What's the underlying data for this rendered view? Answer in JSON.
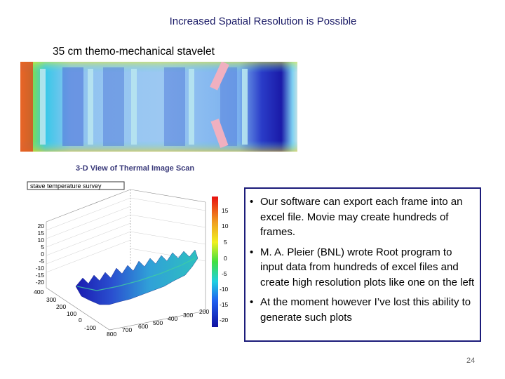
{
  "slide": {
    "title": "Increased Spatial Resolution is Possible",
    "subtitle": "35 cm themo-mechanical stavelet",
    "page_number": "24"
  },
  "figure": {
    "scan_caption": "3-D View of Thermal Image Scan",
    "plot_title": "stave temperature survey",
    "z_axis_ticks": [
      "20",
      "15",
      "10",
      "5",
      "0",
      "-5",
      "-10",
      "-15",
      "-20"
    ],
    "y_axis_ticks": [
      "400",
      "300",
      "200",
      "100",
      "0",
      "-100"
    ],
    "x_axis_ticks": [
      "800",
      "700",
      "600",
      "500",
      "400",
      "300",
      "200"
    ],
    "colorbar_ticks": [
      "15",
      "10",
      "5",
      "0",
      "-5",
      "-10",
      "-15",
      "-20"
    ]
  },
  "bullets": [
    "Our software can export each frame into an excel file. Movie may create hundreds of frames.",
    "M. A. Pleier (BNL) wrote Root program to input data from hundreds of excel files and create high resolution plots like one on the left",
    "At the moment however I’ve lost this ability to generate such plots"
  ],
  "bullet_glyph": "•"
}
